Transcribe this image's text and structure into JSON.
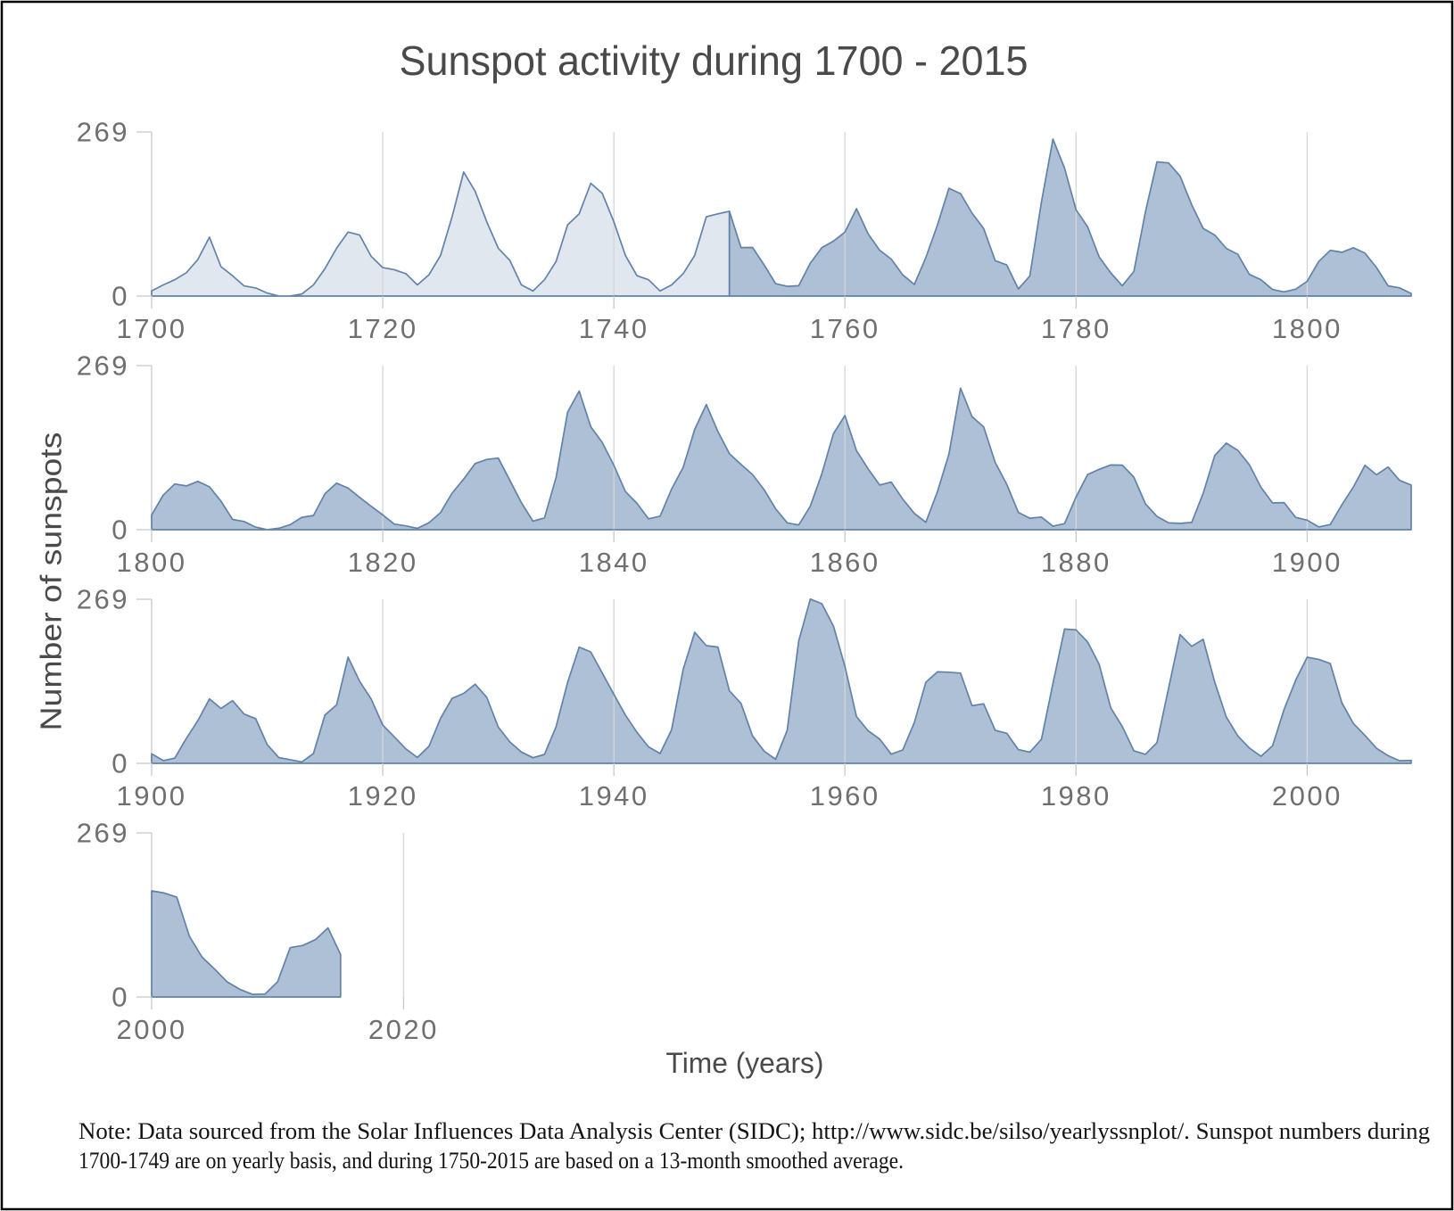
{
  "note": {
    "line1": "Note: Data sourced from the Solar Influences Data Analysis Center (SIDC); http://www.sidc.be/silso/yearlyssnplot/. Sunspot numbers during",
    "line2": "1700-1749 are on yearly basis, and during 1750-2015 are based on a 13-month smoothed average."
  },
  "colors": {
    "fill_yearly": "#e1e7ef",
    "fill_smoothed": "#adc0d5",
    "line": "#6282aa",
    "grid": "#d6d6d6",
    "axis": "#c8c8c8",
    "tick_text": "#6f6f6f",
    "title_text": "#4a4a4a",
    "note_text": "#141414",
    "border": "#000000"
  },
  "chart_data": {
    "type": "area",
    "title": "Sunspot activity during 1700 - 2015",
    "xlabel": "Time (years)",
    "ylabel": "Number of sunspots",
    "ylim": [
      0,
      269
    ],
    "y_ticks": [
      269,
      0
    ],
    "grid": "vertical-only",
    "legend": "none",
    "first_year": 1700,
    "last_year": 2015,
    "yearly_basis_range": "1700-1749",
    "smoothed_range": "1750-2015",
    "smoothed_from_year": 1750,
    "rows": [
      {
        "start": 1700,
        "data_end": 1809,
        "domain_end": 1809,
        "x_ticks": [
          1700,
          1720,
          1740,
          1760,
          1780,
          1800
        ]
      },
      {
        "start": 1800,
        "data_end": 1909,
        "domain_end": 1909,
        "x_ticks": [
          1800,
          1820,
          1840,
          1860,
          1880,
          1900
        ]
      },
      {
        "start": 1900,
        "data_end": 2009,
        "domain_end": 2009,
        "x_ticks": [
          1900,
          1920,
          1940,
          1960,
          1980,
          2000
        ]
      },
      {
        "start": 2000,
        "data_end": 2015,
        "domain_end": 2100,
        "x_ticks": [
          2000,
          2020
        ]
      }
    ],
    "values": [
      8.3,
      18.3,
      26.7,
      38.3,
      60,
      96.7,
      48.3,
      33.3,
      16.7,
      13.3,
      5,
      0,
      0,
      3.3,
      18.3,
      45,
      78.3,
      105,
      100,
      65,
      46.7,
      43.3,
      36.7,
      18.3,
      35,
      66.7,
      130,
      203.3,
      171.7,
      121.7,
      78.3,
      58.3,
      18.3,
      8.3,
      26.7,
      56.7,
      116.7,
      135,
      185,
      168.3,
      121.7,
      66.7,
      33.3,
      26.7,
      8.3,
      18.3,
      36.7,
      66.7,
      130,
      134.8,
      139,
      79.5,
      79.7,
      51.2,
      20.3,
      16,
      17,
      54,
      79.3,
      90,
      104.8,
      143.2,
      102,
      75.2,
      60.7,
      34.8,
      19,
      63,
      116.3,
      176.8,
      168,
      136,
      110.8,
      58,
      51,
      11.7,
      33,
      154.2,
      257.3,
      209.8,
      141.3,
      113.5,
      64.2,
      38,
      17,
      40.2,
      138.2,
      220,
      218.2,
      196.8,
      149.8,
      111,
      100,
      78.2,
      68.3,
      35.5,
      26.7,
      10.7,
      6.8,
      11.3,
      24.2,
      56.7,
      75,
      71.8,
      79.2,
      70.3,
      46.8,
      16.8,
      13.5,
      4.2,
      0,
      2.3,
      8.3,
      20.3,
      23.2,
      59,
      76.3,
      68.3,
      52.9,
      38.5,
      24.2,
      9.2,
      6.3,
      2.2,
      11.4,
      28.2,
      59.9,
      83,
      108.5,
      115.2,
      117.4,
      80.8,
      44.3,
      13.9,
      19.4,
      85.8,
      192.7,
      227.3,
      168.7,
      142.9,
      105.5,
      62.6,
      43.1,
      17.8,
      22.2,
      66.6,
      102.3,
      164.5,
      205.3,
      160.9,
      124.7,
      107.1,
      90.5,
      65.7,
      34.3,
      11.3,
      7.8,
      38.5,
      91.7,
      157.5,
      187.2,
      129.6,
      99.8,
      73.3,
      78,
      50.3,
      26.7,
      12.2,
      62.3,
      123.9,
      232,
      185.3,
      168.7,
      110.1,
      74.5,
      28.3,
      18.9,
      20.7,
      5.7,
      10,
      53.7,
      90.5,
      99,
      106.1,
      105.8,
      86.3,
      42.4,
      21.8,
      11.2,
      10.4,
      11.8,
      59.5,
      121.7,
      142,
      130,
      106.6,
      69.4,
      43.8,
      44.4,
      20.2,
      15.7,
      4.6,
      8.5,
      40.8,
      70.1,
      105.5,
      90.1,
      102.8,
      80.9,
      73.2,
      30.9,
      9.5,
      6,
      2.4,
      16.1,
      79.3,
      95.8,
      173.9,
      134.4,
      105.5,
      62.7,
      43.5,
      23.7,
      9.7,
      27.9,
      74,
      106.5,
      114.7,
      129.7,
      108.2,
      59.4,
      35.1,
      18.6,
      9.2,
      14.6,
      60.2,
      132.8,
      190.6,
      182.6,
      148,
      113,
      79.2,
      50.8,
      27.1,
      16.1,
      55.3,
      154.3,
      214.7,
      193,
      190.7,
      118.9,
      98.3,
      45,
      20.1,
      6.6,
      54.2,
      200.7,
      269.3,
      261.7,
      225.1,
      159,
      76.4,
      53.4,
      39.9,
      15,
      22,
      66.8,
      132.9,
      150,
      149.4,
      148,
      94.4,
      97.6,
      54.1,
      49.2,
      22.5,
      18.4,
      39.3,
      131,
      220.1,
      218.9,
      198.9,
      162.4,
      91,
      60.5,
      20.6,
      14.8,
      33.9,
      123,
      211.1,
      191.8,
      203.3,
      133,
      76.1,
      44.9,
      25.1,
      11.6,
      28.9,
      88.3,
      136.3,
      173.9,
      170.4,
      163.6,
      99.3,
      65.3,
      45.8,
      24.7,
      12.6,
      4.2,
      4.8,
      24.9,
      80.8,
      84.5,
      94,
      113.3,
      69.8
    ]
  }
}
